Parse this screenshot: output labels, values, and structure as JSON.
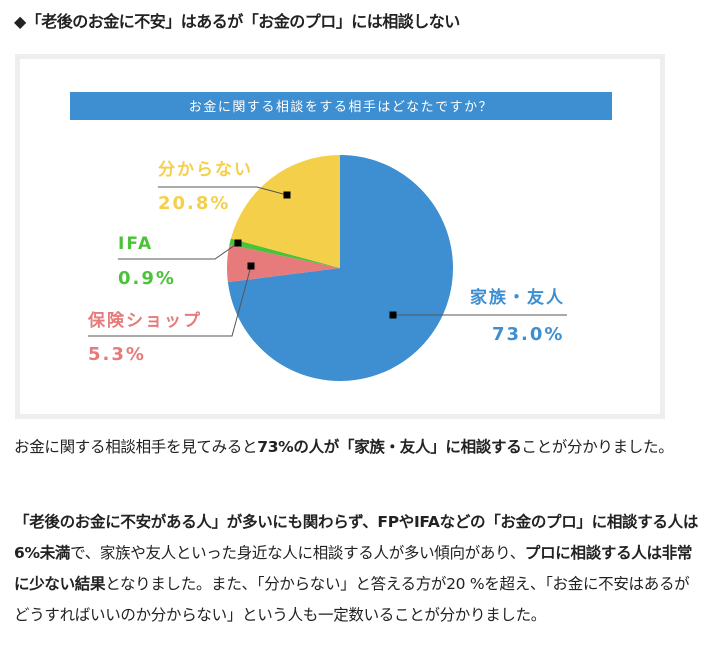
{
  "heading": "◆「老後のお金に不安」はあるが「お金のプロ」には相談しない",
  "chart_data": {
    "type": "pie",
    "title": "お金に関する相談をする相手はどなたですか？",
    "slices": [
      {
        "label": "家族・友人",
        "value": 73.0,
        "display": "73.0%",
        "color": "#3d8fd1"
      },
      {
        "label": "保険ショップ",
        "value": 5.3,
        "display": "5.3%",
        "color": "#e77a7a"
      },
      {
        "label": "IFA",
        "value": 0.9,
        "display": "0.9%",
        "color": "#4cc13a"
      },
      {
        "label": "分からない",
        "value": 20.8,
        "display": "20.8%",
        "color": "#f4d04a"
      }
    ],
    "title_bar_color": "#3d8fd1"
  },
  "paragraphs": [
    [
      {
        "t": "お金に関する相談相手を見てみると",
        "b": false
      },
      {
        "t": "73%の人が「家族・友人」に相談する",
        "b": true
      },
      {
        "t": "ことが分かりました。",
        "b": false
      }
    ],
    [
      {
        "t": "「老後のお金に不安がある人」が多いにも関わらず、FPやIFAなどの「お金のプロ」に相談する人は6%未満",
        "b": true
      },
      {
        "t": "で、家族や友人といった身近な人に相談する人が多い傾向があり、",
        "b": false
      },
      {
        "t": "プロに相談する人は非常に少ない結果",
        "b": true
      },
      {
        "t": "となりました。また、「分からない」と答える方が20 %を超え、「お金に不安はあるがどうすればいいのか分からない」という人も一定数いることが分かりました。",
        "b": false
      }
    ]
  ]
}
